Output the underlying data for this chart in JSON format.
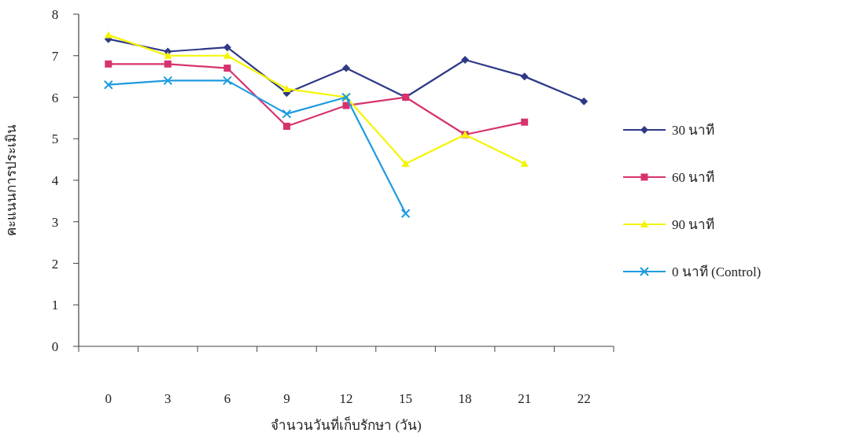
{
  "chart_data": {
    "type": "line",
    "xlabel": "จำนวนวันที่เก็บรักษา (วัน)",
    "ylabel": "คะแนนการประเมิน",
    "categories": [
      "0",
      "3",
      "6",
      "9",
      "12",
      "15",
      "18",
      "21",
      "22"
    ],
    "series": [
      {
        "name": "30 นาที",
        "color": "#2e3a87",
        "marker": "diamond",
        "values": [
          7.4,
          7.1,
          7.2,
          6.1,
          6.7,
          6.0,
          6.9,
          6.5,
          5.9
        ]
      },
      {
        "name": "60 นาที",
        "color": "#d6336e",
        "marker": "square",
        "values": [
          6.8,
          6.8,
          6.7,
          5.3,
          5.8,
          6.0,
          5.1,
          5.4,
          null
        ]
      },
      {
        "name": "90 นาที",
        "color": "#f5f500",
        "marker": "triangle",
        "values": [
          7.5,
          7.0,
          7.0,
          6.2,
          6.0,
          4.4,
          5.1,
          4.4,
          null
        ]
      },
      {
        "name": "0 นาที (Control)",
        "color": "#1e9be0",
        "marker": "cross",
        "values": [
          6.3,
          6.4,
          6.4,
          5.6,
          6.0,
          3.2,
          null,
          null,
          null
        ]
      }
    ],
    "ylim": [
      0,
      8
    ],
    "yticks": [
      0,
      1,
      2,
      3,
      4,
      5,
      6,
      7,
      8
    ],
    "legend": "right"
  }
}
